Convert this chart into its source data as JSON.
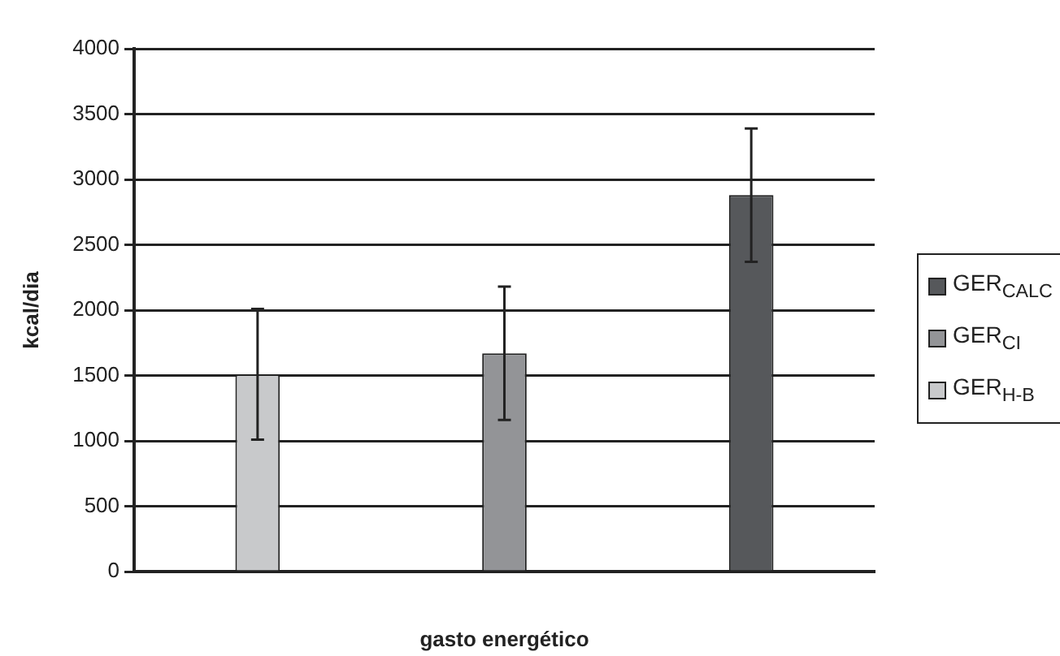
{
  "chart_data": {
    "type": "bar",
    "xlabel": "gasto energético",
    "ylabel": "kcal/dia",
    "categories": [
      null,
      null,
      null
    ],
    "series": [
      {
        "name": "GER$_{H-B}$",
        "color": "#c8c9cb",
        "values": [
          1510,
          null,
          null
        ],
        "errors": [
          500,
          null,
          null
        ]
      },
      {
        "name": "GER$_{CI}$",
        "color": "#939497",
        "values": [
          null,
          1670,
          null
        ],
        "errors": [
          null,
          510,
          null
        ]
      },
      {
        "name": "GER$_{CALC}$",
        "color": "#56585b",
        "values": [
          null,
          null,
          2880
        ],
        "errors": [
          null,
          null,
          510
        ]
      }
    ],
    "ylim": [
      0,
      4000
    ],
    "yticks": [
      0,
      500,
      1000,
      1500,
      2000,
      2500,
      3000,
      3500,
      4000
    ],
    "grid": "y",
    "legend": "right"
  }
}
